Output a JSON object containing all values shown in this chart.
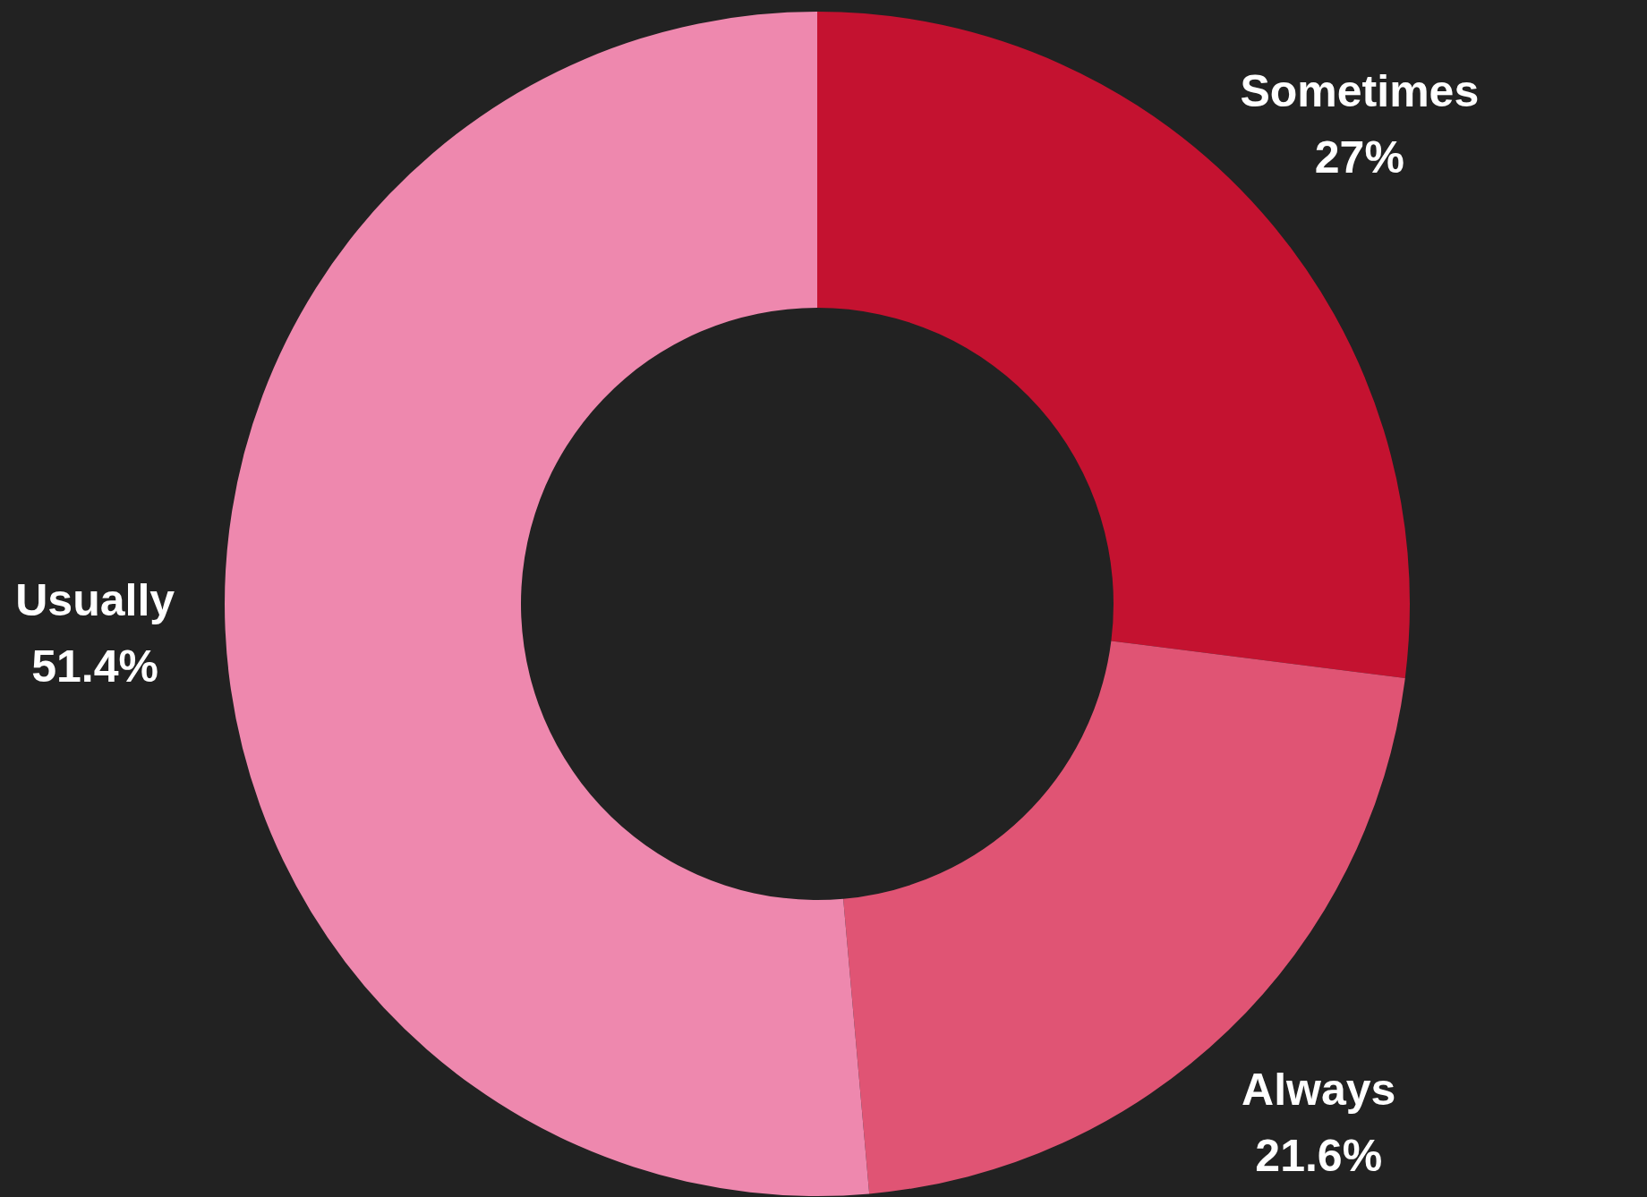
{
  "chart_data": {
    "type": "donut",
    "categories": [
      "Sometimes",
      "Always",
      "Usually"
    ],
    "values": [
      27,
      21.6,
      51.4
    ],
    "colors": [
      "#c41230",
      "#e05474",
      "#ee88ae"
    ],
    "value_labels": [
      "27%",
      "21.6%",
      "51.4%"
    ],
    "legend": false
  }
}
